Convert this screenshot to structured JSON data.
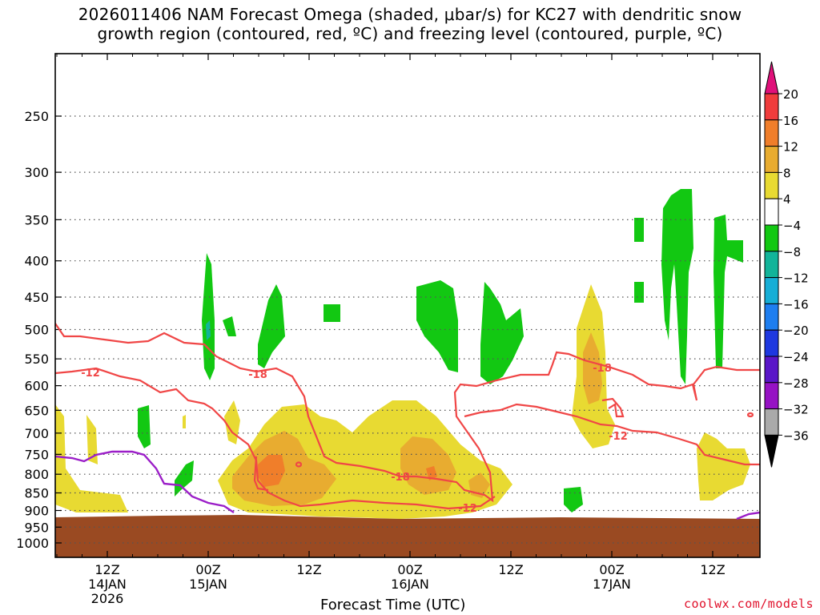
{
  "title": "2026011406 NAM Forecast Omega (shaded, μbar/s) for KC27 with dendritic snow\ngrowth region (contoured, red, ºC) and freezing level (contoured, purple, ºC)",
  "credit": "coolwx.com/models",
  "chart_data": {
    "type": "heatmap",
    "title": "2026011406 NAM Forecast Omega (shaded, μbar/s) for KC27 with dendritic snow growth region (contoured, red, ºC) and freezing level (contoured, purple, ºC)",
    "xlabel": "Forecast Time (UTC)",
    "ylabel": "",
    "y_axis": {
      "scale": "log-pressure (inverted)",
      "ticks": [
        250,
        300,
        350,
        400,
        450,
        500,
        550,
        600,
        650,
        700,
        750,
        800,
        850,
        900,
        950,
        1000
      ],
      "grid": "dotted"
    },
    "x_axis": {
      "ticks": [
        {
          "hour": 12,
          "lines": [
            "12Z",
            "14JAN",
            "2026"
          ]
        },
        {
          "hour": 24,
          "lines": [
            "00Z",
            "15JAN"
          ]
        },
        {
          "hour": 36,
          "lines": [
            "12Z"
          ]
        },
        {
          "hour": 48,
          "lines": [
            "00Z",
            "16JAN"
          ]
        },
        {
          "hour": 60,
          "lines": [
            "12Z"
          ]
        },
        {
          "hour": 72,
          "lines": [
            "00Z",
            "17JAN"
          ]
        },
        {
          "hour": 84,
          "lines": [
            "12Z"
          ]
        }
      ],
      "range_hours": [
        6,
        90
      ]
    },
    "colorbar": {
      "levels": [
        20,
        16,
        12,
        8,
        4,
        -4,
        -8,
        -12,
        -16,
        -20,
        -24,
        -28,
        -32,
        -36
      ],
      "colors": [
        "#f03c3c",
        "#f07e2a",
        "#e8ac30",
        "#e8da32",
        "#ffffff",
        "#12c812",
        "#12b49a",
        "#16aed6",
        "#1e7ef0",
        "#1e38e0",
        "#5a16c8",
        "#9612c4",
        "#aaaaaa"
      ],
      "top_arrow_color": "#e0107a",
      "bottom_arrow_color": "#000000"
    },
    "contours": {
      "dendritic_red": {
        "color": "#f04646",
        "labels": [
          "-12",
          "-18",
          "-18",
          "-18",
          "-12",
          "-12"
        ]
      },
      "freezing_purple": {
        "color": "#9b1ec8"
      }
    },
    "ground_color": "#9a4a22"
  }
}
